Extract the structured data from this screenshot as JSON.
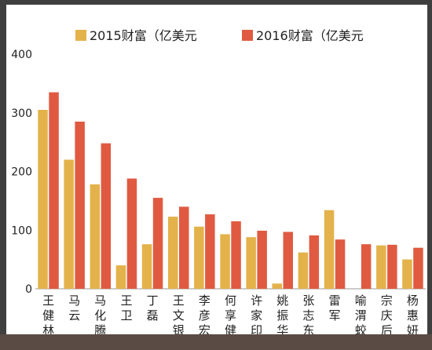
{
  "chart_data": {
    "type": "bar",
    "title": "",
    "xlabel": "",
    "ylabel": "",
    "ylim": [
      0,
      400
    ],
    "yticks": [
      "0",
      "100",
      "200",
      "300",
      "400"
    ],
    "grid": false,
    "legend_position": "top",
    "categories": [
      "王健林",
      "马云",
      "马化腾",
      "王卫",
      "丁磊",
      "王文银",
      "李彦宏",
      "何享健",
      "许家印",
      "姚振华",
      "张志东",
      "雷军",
      "喻渭蛟",
      "宗庆后",
      "杨惠妍"
    ],
    "series": [
      {
        "name": "2015财富（亿美元",
        "color": "#e3b24a",
        "values": [
          305,
          220,
          178,
          40,
          76,
          123,
          106,
          93,
          88,
          9,
          62,
          134,
          0,
          74,
          50
        ]
      },
      {
        "name": "2016财富（亿美元",
        "color": "#e05a41",
        "values": [
          335,
          285,
          248,
          188,
          155,
          140,
          127,
          115,
          99,
          97,
          91,
          84,
          76,
          75,
          70
        ]
      }
    ]
  }
}
